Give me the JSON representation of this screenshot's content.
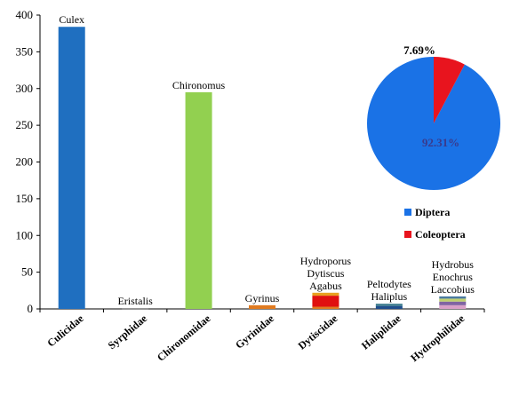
{
  "chart_data": [
    {
      "type": "bar",
      "stacked": true,
      "categories": [
        "Culicidae",
        "Syrphidae",
        "Chironomidae",
        "Gyrinidae",
        "Dytiscidae",
        "Haliplidae",
        "Hydrophilidae"
      ],
      "ylim": [
        0,
        400
      ],
      "yticks": [
        0,
        50,
        100,
        150,
        200,
        250,
        300,
        350,
        400
      ],
      "grid": false,
      "series": [
        {
          "values": [
            384,
            0,
            0,
            0,
            0,
            0,
            0
          ],
          "color": "#1f6fc0"
        },
        {
          "values": [
            0,
            1,
            0,
            0,
            0,
            0,
            0
          ],
          "color": "#808080"
        },
        {
          "values": [
            0,
            0,
            295,
            0,
            0,
            0,
            0
          ],
          "color": "#92d050"
        },
        {
          "values": [
            0,
            0,
            0,
            5,
            0,
            0,
            0
          ],
          "color": "#e07a1f"
        },
        {
          "values": [
            0,
            0,
            0,
            0,
            3,
            0,
            0
          ],
          "color": "#e07a1f"
        },
        {
          "values": [
            0,
            0,
            0,
            0,
            15,
            0,
            0
          ],
          "color": "#e01010"
        },
        {
          "values": [
            0,
            0,
            0,
            0,
            4,
            0,
            0
          ],
          "color": "#e8a020"
        },
        {
          "values": [
            0,
            0,
            0,
            0,
            0,
            4,
            0
          ],
          "color": "#1f4e8c"
        },
        {
          "values": [
            0,
            0,
            0,
            0,
            0,
            3,
            0
          ],
          "color": "#3a7a8c"
        },
        {
          "values": [
            0,
            0,
            0,
            0,
            0,
            0,
            5
          ],
          "color": "#d9a0c8"
        },
        {
          "values": [
            0,
            0,
            0,
            0,
            0,
            0,
            5
          ],
          "color": "#8064a2"
        },
        {
          "values": [
            0,
            0,
            0,
            0,
            0,
            0,
            4
          ],
          "color": "#c0d070"
        },
        {
          "values": [
            0,
            0,
            0,
            0,
            0,
            0,
            3
          ],
          "color": "#4a7aa0"
        }
      ],
      "annotations": [
        {
          "category": "Culicidae",
          "lines": [
            "Culex"
          ]
        },
        {
          "category": "Syrphidae",
          "lines": [
            "Eristalis"
          ]
        },
        {
          "category": "Chironomidae",
          "lines": [
            "Chironomus"
          ]
        },
        {
          "category": "Gyrinidae",
          "lines": [
            "Gyrinus"
          ]
        },
        {
          "category": "Dytiscidae",
          "lines": [
            "Hydroporus",
            "Dytiscus",
            "Agabus"
          ]
        },
        {
          "category": "Haliplidae",
          "lines": [
            "Peltodytes",
            "Haliplus"
          ]
        },
        {
          "category": "Hydrophilidae",
          "lines": [
            "Hydrobus",
            "Enochrus",
            "Laccobius"
          ]
        }
      ]
    },
    {
      "type": "pie",
      "slices": [
        {
          "label": "Diptera",
          "value": 92.31,
          "text": "92.31%",
          "color": "#1a72e6"
        },
        {
          "label": "Coleoptera",
          "value": 7.69,
          "text": "7.69%",
          "color": "#e8141e"
        }
      ],
      "legend": "bottom"
    }
  ]
}
